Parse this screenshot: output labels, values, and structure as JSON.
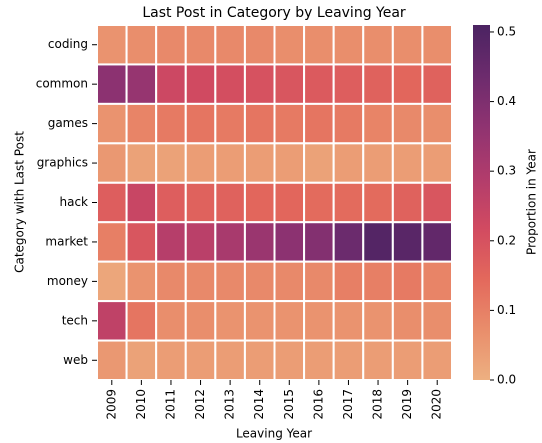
{
  "chart_data": {
    "type": "heatmap",
    "title": "Last Post in Category by Leaving Year",
    "x_label": "Leaving Year",
    "y_label": "Category with Last Post",
    "colorbar_label": "Proportion in Year",
    "categories": [
      "2009",
      "2010",
      "2011",
      "2012",
      "2013",
      "2014",
      "2015",
      "2016",
      "2017",
      "2018",
      "2019",
      "2020"
    ],
    "y_categories": [
      "coding",
      "common",
      "games",
      "graphics",
      "hack",
      "market",
      "money",
      "tech",
      "web"
    ],
    "z": [
      [
        0.06,
        0.07,
        0.08,
        0.08,
        0.08,
        0.08,
        0.07,
        0.07,
        0.07,
        0.07,
        0.07,
        0.07
      ],
      [
        0.37,
        0.35,
        0.23,
        0.22,
        0.21,
        0.2,
        0.19,
        0.18,
        0.17,
        0.16,
        0.15,
        0.16
      ],
      [
        0.06,
        0.09,
        0.11,
        0.12,
        0.11,
        0.12,
        0.11,
        0.12,
        0.11,
        0.09,
        0.08,
        0.07
      ],
      [
        0.05,
        0.03,
        0.03,
        0.04,
        0.04,
        0.04,
        0.04,
        0.03,
        0.04,
        0.04,
        0.04,
        0.04
      ],
      [
        0.17,
        0.24,
        0.17,
        0.16,
        0.16,
        0.15,
        0.15,
        0.14,
        0.14,
        0.14,
        0.16,
        0.19
      ],
      [
        0.1,
        0.19,
        0.28,
        0.27,
        0.31,
        0.34,
        0.37,
        0.39,
        0.44,
        0.49,
        0.48,
        0.46
      ],
      [
        0.02,
        0.06,
        0.08,
        0.08,
        0.08,
        0.08,
        0.08,
        0.08,
        0.1,
        0.1,
        0.11,
        0.09
      ],
      [
        0.26,
        0.12,
        0.07,
        0.07,
        0.06,
        0.06,
        0.06,
        0.06,
        0.06,
        0.06,
        0.07,
        0.07
      ],
      [
        0.05,
        0.03,
        0.04,
        0.04,
        0.04,
        0.04,
        0.04,
        0.04,
        0.04,
        0.04,
        0.04,
        0.04
      ]
    ],
    "zlim": [
      0,
      0.51
    ],
    "zticks": [
      {
        "value": 0,
        "label": "0.0"
      },
      0.1,
      0.2,
      0.3,
      0.4,
      0.5
    ],
    "colorscale": [
      "#edb081",
      "#e98d6b",
      "#e3685c",
      "#d14a61",
      "#b13c6c",
      "#8f3371",
      "#6c2b6d",
      "#4b2362"
    ]
  }
}
